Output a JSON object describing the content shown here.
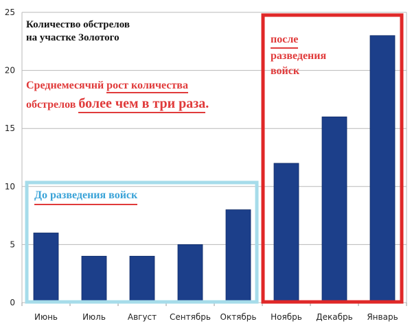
{
  "chart_data": {
    "type": "bar",
    "categories": [
      "Июнь",
      "Июль",
      "Август",
      "Сентябрь",
      "Октябрь",
      "Ноябрь",
      "Декабрь",
      "Январь"
    ],
    "values": [
      6,
      4,
      4,
      5,
      8,
      12,
      16,
      23
    ],
    "ylim": [
      0,
      25
    ],
    "yticks": [
      0,
      5,
      10,
      15,
      20,
      25
    ],
    "grid": "horizontal",
    "bar_color": "#1c3f8a"
  },
  "annotations": {
    "title_line1": "Количество обстрелов",
    "title_line2": "на участке Золотого",
    "growth_part1": "Среднемесячнй",
    "growth_part2": "рост количества",
    "growth_part3": "обстрелов",
    "growth_part4": "более чем в три раза",
    "growth_part5": ".",
    "before_label": "До разведения войск",
    "after_line1": "после",
    "after_line2": "разведения",
    "after_line3": "войск",
    "before_box_color": "#a6dcea",
    "after_box_color": "#e02828"
  }
}
